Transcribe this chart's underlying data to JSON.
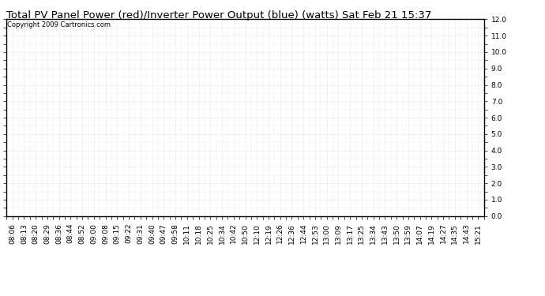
{
  "title": "Total PV Panel Power (red)/Inverter Power Output (blue) (watts) Sat Feb 21 15:37",
  "copyright_text": "Copyright 2009 Cartronics.com",
  "x_labels": [
    "08:06",
    "08:13",
    "08:20",
    "08:29",
    "08:36",
    "08:44",
    "08:52",
    "09:00",
    "09:08",
    "09:15",
    "09:22",
    "09:31",
    "09:40",
    "09:47",
    "09:58",
    "10:11",
    "10:18",
    "10:25",
    "10:34",
    "10:42",
    "10:50",
    "12:10",
    "12:19",
    "12:26",
    "12:36",
    "12:44",
    "12:53",
    "13:00",
    "13:09",
    "13:17",
    "13:25",
    "13:34",
    "13:43",
    "13:50",
    "13:59",
    "14:07",
    "14:19",
    "14:27",
    "14:35",
    "14:43",
    "15:21"
  ],
  "ylim": [
    0.0,
    12.0
  ],
  "yticks": [
    0.0,
    1.0,
    2.0,
    3.0,
    4.0,
    5.0,
    6.0,
    7.0,
    8.0,
    9.0,
    10.0,
    11.0,
    12.0
  ],
  "background_color": "#ffffff",
  "grid_color": "#bbbbbb",
  "title_fontsize": 9.5,
  "tick_fontsize": 6.5,
  "copyright_fontsize": 6,
  "border_color": "#000000",
  "title_font": "DejaVu Sans",
  "label_font": "DejaVu Sans"
}
